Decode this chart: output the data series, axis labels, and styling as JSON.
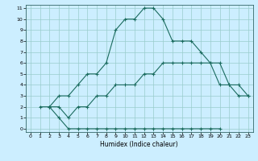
{
  "title": "",
  "xlabel": "Humidex (Indice chaleur)",
  "bg_color": "#cceeff",
  "line_color": "#1a6b5e",
  "grid_color": "#99cccc",
  "xlim": [
    -0.5,
    23.5
  ],
  "ylim": [
    -0.3,
    11.3
  ],
  "xticks": [
    0,
    1,
    2,
    3,
    4,
    5,
    6,
    7,
    8,
    9,
    10,
    11,
    12,
    13,
    14,
    15,
    16,
    17,
    18,
    19,
    20,
    21,
    22,
    23
  ],
  "yticks": [
    0,
    1,
    2,
    3,
    4,
    5,
    6,
    7,
    8,
    9,
    10,
    11
  ],
  "line_top_x": [
    2,
    3,
    4,
    5,
    6,
    7,
    8,
    9,
    10,
    11,
    12,
    13,
    14,
    15,
    16,
    17,
    18,
    19,
    20,
    21,
    22,
    23
  ],
  "line_top_y": [
    2,
    3,
    3,
    4,
    5,
    5,
    6,
    9,
    10,
    10,
    11,
    11,
    10,
    8,
    8,
    8,
    7,
    6,
    4,
    4,
    3,
    3
  ],
  "line_mid_x": [
    2,
    3,
    4,
    5,
    6,
    7,
    8,
    9,
    10,
    11,
    12,
    13,
    14,
    15,
    16,
    17,
    18,
    19,
    20,
    21,
    22,
    23
  ],
  "line_mid_y": [
    2,
    2,
    1,
    2,
    2,
    3,
    3,
    4,
    4,
    4,
    5,
    5,
    6,
    6,
    6,
    6,
    6,
    6,
    6,
    4,
    4,
    3
  ],
  "line_bot_x": [
    1,
    2,
    3,
    4,
    5,
    6,
    7,
    8,
    9,
    10,
    11,
    12,
    13,
    14,
    15,
    16,
    17,
    18,
    19,
    20
  ],
  "line_bot_y": [
    2,
    2,
    1,
    0,
    0,
    0,
    0,
    0,
    0,
    0,
    0,
    0,
    0,
    0,
    0,
    0,
    0,
    0,
    0,
    0
  ]
}
